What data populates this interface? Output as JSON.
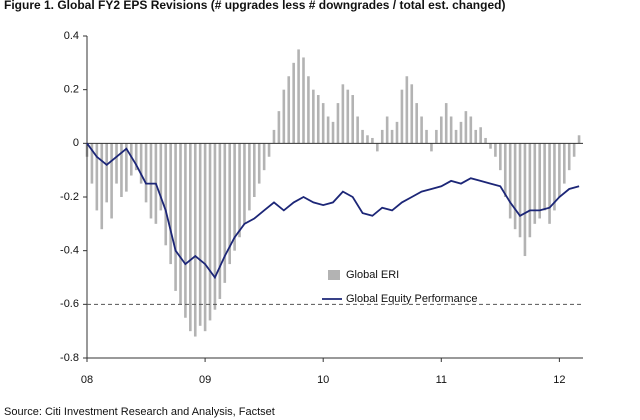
{
  "chart_data": {
    "type": "bar_line",
    "title": "Figure 1. Global FY2 EPS Revisions (# upgrades less # downgrades / total est. changed)",
    "source": "Source: Citi Investment Research and Analysis, Factset",
    "xlim": [
      2008,
      2012.2
    ],
    "xticks": [
      {
        "value": 2008,
        "label": "08"
      },
      {
        "value": 2009,
        "label": "09"
      },
      {
        "value": 2010,
        "label": "10"
      },
      {
        "value": 2011,
        "label": "11"
      },
      {
        "value": 2012,
        "label": "12"
      }
    ],
    "ylim": [
      -0.8,
      0.4
    ],
    "yticks": [
      {
        "value": -0.8,
        "label": "-0.8"
      },
      {
        "value": -0.6,
        "label": "-0.6"
      },
      {
        "value": -0.4,
        "label": "-0.4"
      },
      {
        "value": -0.2,
        "label": "-0.2"
      },
      0,
      {
        "value": 0.2,
        "label": "0.2"
      },
      {
        "value": 0.4,
        "label": "0.4"
      }
    ],
    "reference_lines": [
      -0.6
    ],
    "series": [
      {
        "name": "Global ERI",
        "type": "bar",
        "color": "#b3b3b3",
        "x": [
          2008,
          2008.0417,
          2008.0833,
          2008.125,
          2008.1667,
          2008.2083,
          2008.25,
          2008.2917,
          2008.3333,
          2008.375,
          2008.4167,
          2008.4583,
          2008.5,
          2008.5417,
          2008.5833,
          2008.625,
          2008.6667,
          2008.7083,
          2008.75,
          2008.7917,
          2008.8333,
          2008.875,
          2008.9167,
          2008.9583,
          2009,
          2009.0417,
          2009.0833,
          2009.125,
          2009.1667,
          2009.2083,
          2009.25,
          2009.2917,
          2009.3333,
          2009.375,
          2009.4167,
          2009.4583,
          2009.5,
          2009.5417,
          2009.5833,
          2009.625,
          2009.6667,
          2009.7083,
          2009.75,
          2009.7917,
          2009.8333,
          2009.875,
          2009.9167,
          2009.9583,
          2010,
          2010.0417,
          2010.0833,
          2010.125,
          2010.1667,
          2010.2083,
          2010.25,
          2010.2917,
          2010.3333,
          2010.375,
          2010.4167,
          2010.4583,
          2010.5,
          2010.5417,
          2010.5833,
          2010.625,
          2010.6667,
          2010.7083,
          2010.75,
          2010.7917,
          2010.8333,
          2010.875,
          2010.9167,
          2010.9583,
          2011,
          2011.0417,
          2011.0833,
          2011.125,
          2011.1667,
          2011.2083,
          2011.25,
          2011.2917,
          2011.3333,
          2011.375,
          2011.4167,
          2011.4583,
          2011.5,
          2011.5417,
          2011.5833,
          2011.625,
          2011.6667,
          2011.7083,
          2011.75,
          2011.7917,
          2011.8333,
          2011.875,
          2011.9167,
          2011.9583,
          2012,
          2012.0417,
          2012.0833,
          2012.125,
          2012.1667
        ],
        "values": [
          -0.05,
          -0.15,
          -0.25,
          -0.32,
          -0.22,
          -0.28,
          -0.15,
          -0.2,
          -0.18,
          -0.12,
          -0.1,
          -0.15,
          -0.22,
          -0.28,
          -0.3,
          -0.25,
          -0.38,
          -0.45,
          -0.55,
          -0.6,
          -0.65,
          -0.7,
          -0.72,
          -0.68,
          -0.7,
          -0.66,
          -0.62,
          -0.58,
          -0.52,
          -0.45,
          -0.4,
          -0.35,
          -0.3,
          -0.25,
          -0.2,
          -0.15,
          -0.1,
          -0.05,
          0.05,
          0.12,
          0.2,
          0.25,
          0.3,
          0.35,
          0.32,
          0.25,
          0.2,
          0.18,
          0.15,
          0.1,
          0.08,
          0.15,
          0.22,
          0.2,
          0.18,
          0.1,
          0.05,
          0.03,
          0.02,
          -0.03,
          0.05,
          0.1,
          0.05,
          0.08,
          0.2,
          0.25,
          0.22,
          0.15,
          0.1,
          0.05,
          -0.03,
          0.05,
          0.1,
          0.15,
          0.1,
          0.05,
          0.08,
          0.12,
          0.1,
          0.05,
          0.06,
          0.02,
          -0.02,
          -0.05,
          -0.1,
          -0.2,
          -0.28,
          -0.32,
          -0.35,
          -0.42,
          -0.35,
          -0.3,
          -0.28,
          -0.25,
          -0.3,
          -0.25,
          -0.2,
          -0.15,
          -0.1,
          -0.05,
          0.03
        ]
      },
      {
        "name": "Global Equity Performance",
        "type": "line",
        "color": "#1c2677",
        "x": [
          2008,
          2008.0833,
          2008.1667,
          2008.25,
          2008.3333,
          2008.4167,
          2008.5,
          2008.5833,
          2008.6667,
          2008.75,
          2008.8333,
          2008.9167,
          2009,
          2009.0833,
          2009.1667,
          2009.25,
          2009.3333,
          2009.4167,
          2009.5,
          2009.5833,
          2009.6667,
          2009.75,
          2009.8333,
          2009.9167,
          2010,
          2010.0833,
          2010.1667,
          2010.25,
          2010.3333,
          2010.4167,
          2010.5,
          2010.5833,
          2010.6667,
          2010.75,
          2010.8333,
          2010.9167,
          2011,
          2011.0833,
          2011.1667,
          2011.25,
          2011.3333,
          2011.4167,
          2011.5,
          2011.5833,
          2011.6667,
          2011.75,
          2011.8333,
          2011.9167,
          2012,
          2012.0833,
          2012.1667
        ],
        "values": [
          0,
          -0.05,
          -0.08,
          -0.05,
          -0.02,
          -0.08,
          -0.15,
          -0.15,
          -0.25,
          -0.4,
          -0.45,
          -0.42,
          -0.45,
          -0.5,
          -0.42,
          -0.35,
          -0.3,
          -0.28,
          -0.25,
          -0.22,
          -0.25,
          -0.22,
          -0.2,
          -0.22,
          -0.23,
          -0.22,
          -0.18,
          -0.2,
          -0.26,
          -0.27,
          -0.24,
          -0.25,
          -0.22,
          -0.2,
          -0.18,
          -0.17,
          -0.16,
          -0.14,
          -0.15,
          -0.13,
          -0.14,
          -0.15,
          -0.16,
          -0.22,
          -0.27,
          -0.25,
          -0.25,
          -0.24,
          -0.2,
          -0.17,
          -0.16
        ]
      }
    ]
  }
}
